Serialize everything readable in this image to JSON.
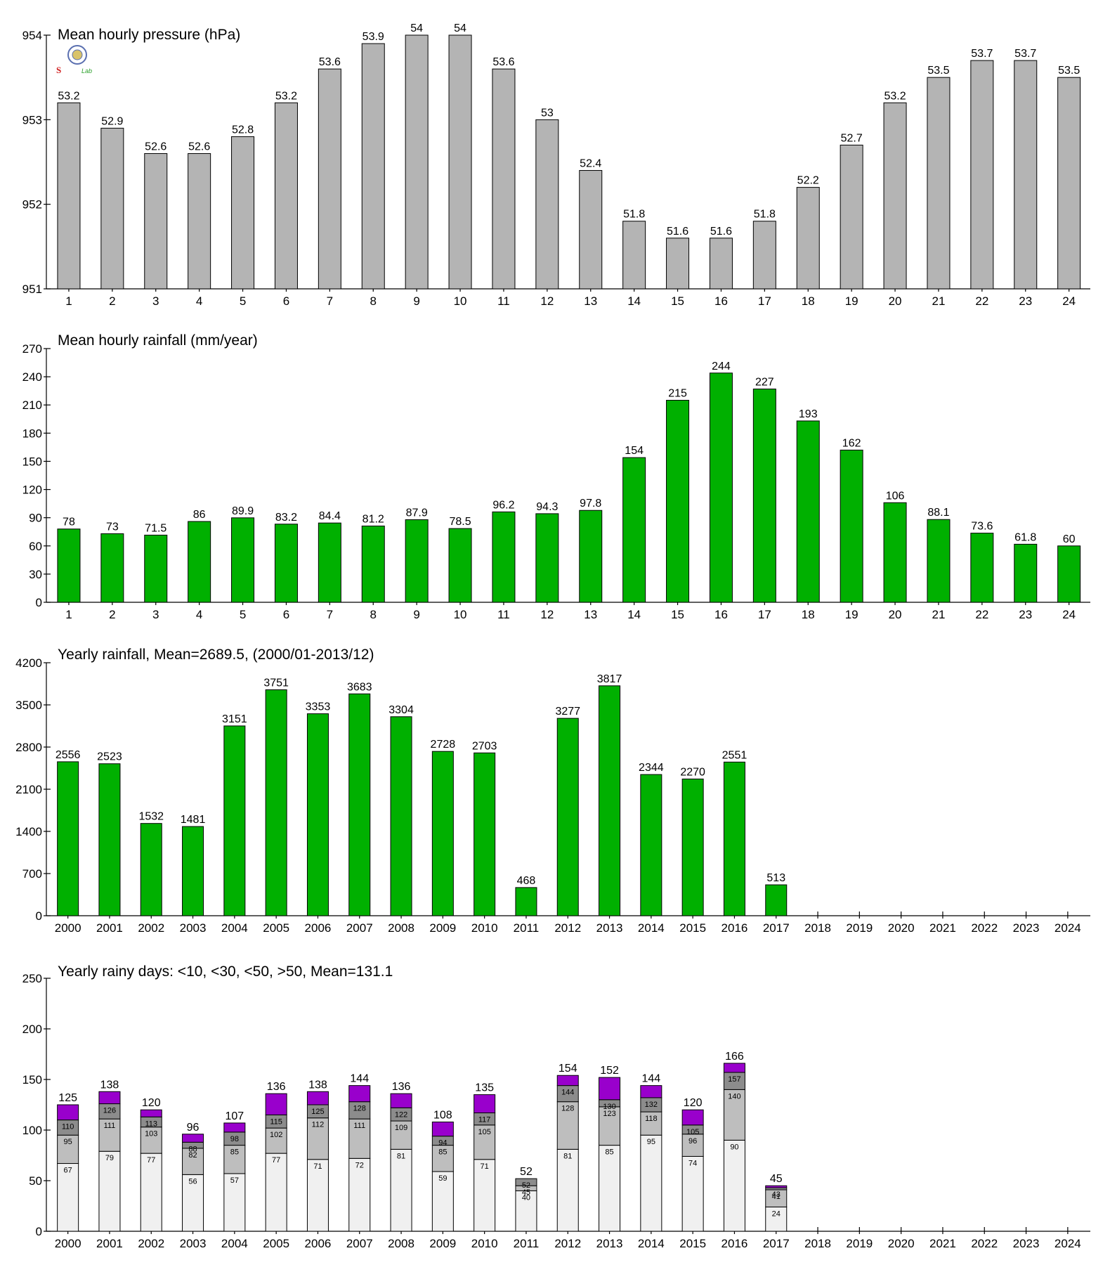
{
  "logo": {
    "text": "Lab",
    "icon": "seal-icon"
  },
  "chart_data": [
    {
      "type": "bar",
      "title": "Mean hourly pressure (hPa)",
      "categories": [
        "1",
        "2",
        "3",
        "4",
        "5",
        "6",
        "7",
        "8",
        "9",
        "10",
        "11",
        "12",
        "13",
        "14",
        "15",
        "16",
        "17",
        "18",
        "19",
        "20",
        "21",
        "22",
        "23",
        "24"
      ],
      "values": [
        953.2,
        952.9,
        952.6,
        952.6,
        952.8,
        953.2,
        953.6,
        953.9,
        954.0,
        954.0,
        953.6,
        953.0,
        952.4,
        951.8,
        951.6,
        951.6,
        951.8,
        952.2,
        952.7,
        953.2,
        953.5,
        953.7,
        953.7,
        953.5
      ],
      "labels": [
        "53.2",
        "52.9",
        "52.6",
        "52.6",
        "52.8",
        "53.2",
        "53.6",
        "53.9",
        "54",
        "54",
        "53.6",
        "53",
        "52.4",
        "51.8",
        "51.6",
        "51.6",
        "51.8",
        "52.2",
        "52.7",
        "53.2",
        "53.5",
        "53.7",
        "53.7",
        "53.5"
      ],
      "ylim": [
        951,
        954
      ],
      "yticks": [
        "951",
        "952",
        "953",
        "954"
      ],
      "color": "#b4b4b4"
    },
    {
      "type": "bar",
      "title": "Mean hourly rainfall (mm/year)",
      "categories": [
        "1",
        "2",
        "3",
        "4",
        "5",
        "6",
        "7",
        "8",
        "9",
        "10",
        "11",
        "12",
        "13",
        "14",
        "15",
        "16",
        "17",
        "18",
        "19",
        "20",
        "21",
        "22",
        "23",
        "24"
      ],
      "values": [
        78,
        73,
        71.5,
        86,
        89.9,
        83.2,
        84.4,
        81.2,
        87.9,
        78.5,
        96.2,
        94.3,
        97.8,
        154,
        215,
        244,
        227,
        193,
        162,
        106,
        88.1,
        73.6,
        61.8,
        60
      ],
      "labels": [
        "78",
        "73",
        "71.5",
        "86",
        "89.9",
        "83.2",
        "84.4",
        "81.2",
        "87.9",
        "78.5",
        "96.2",
        "94.3",
        "97.8",
        "154",
        "215",
        "244",
        "227",
        "193",
        "162",
        "106",
        "88.1",
        "73.6",
        "61.8",
        "60"
      ],
      "ylim": [
        0,
        270
      ],
      "yticks": [
        "0",
        "30",
        "60",
        "90",
        "120",
        "150",
        "180",
        "210",
        "240",
        "270"
      ],
      "color": "#00b000"
    },
    {
      "type": "bar",
      "title": "Yearly rainfall, Mean=2689.5, (2000/01-2013/12)",
      "categories": [
        "2000",
        "2001",
        "2002",
        "2003",
        "2004",
        "2005",
        "2006",
        "2007",
        "2008",
        "2009",
        "2010",
        "2011",
        "2012",
        "2013",
        "2014",
        "2015",
        "2016",
        "2017",
        "2018",
        "2019",
        "2020",
        "2021",
        "2022",
        "2023",
        "2024"
      ],
      "values": [
        2556,
        2523,
        1532,
        1481,
        3151,
        3751,
        3353,
        3683,
        3304,
        2728,
        2703,
        468,
        3277,
        3817,
        2344,
        2270,
        2551,
        513,
        null,
        null,
        null,
        null,
        null,
        null,
        null
      ],
      "labels": [
        "2556",
        "2523",
        "1532",
        "1481",
        "3151",
        "3751",
        "3353",
        "3683",
        "3304",
        "2728",
        "2703",
        "468",
        "3277",
        "3817",
        "2344",
        "2270",
        "2551",
        "513",
        "",
        "",
        "",
        "",
        "",
        "",
        ""
      ],
      "ylim": [
        0,
        4200
      ],
      "yticks": [
        "0",
        "700",
        "1400",
        "2100",
        "2800",
        "3500",
        "4200"
      ],
      "color": "#00b000"
    },
    {
      "type": "bar",
      "stacked": true,
      "title": "Yearly rainy days: <10, <30, <50, >50, Mean=131.1",
      "categories": [
        "2000",
        "2001",
        "2002",
        "2003",
        "2004",
        "2005",
        "2006",
        "2007",
        "2008",
        "2009",
        "2010",
        "2011",
        "2012",
        "2013",
        "2014",
        "2015",
        "2016",
        "2017",
        "2018",
        "2019",
        "2020",
        "2021",
        "2022",
        "2023",
        "2024"
      ],
      "cumulative": [
        [
          67,
          95,
          110,
          125
        ],
        [
          79,
          111,
          126,
          138
        ],
        [
          77,
          103,
          113,
          120
        ],
        [
          56,
          82,
          88,
          96
        ],
        [
          57,
          85,
          98,
          107
        ],
        [
          77,
          102,
          115,
          136
        ],
        [
          71,
          112,
          125,
          138
        ],
        [
          72,
          111,
          128,
          144
        ],
        [
          81,
          109,
          122,
          136
        ],
        [
          59,
          85,
          94,
          108
        ],
        [
          71,
          105,
          117,
          135
        ],
        [
          40,
          45,
          52,
          52
        ],
        [
          81,
          128,
          144,
          154
        ],
        [
          85,
          123,
          130,
          152
        ],
        [
          95,
          118,
          132,
          144
        ],
        [
          74,
          96,
          105,
          120
        ],
        [
          90,
          140,
          157,
          166
        ],
        [
          24,
          41,
          43,
          45
        ],
        null,
        null,
        null,
        null,
        null,
        null,
        null
      ],
      "ylim": [
        0,
        250
      ],
      "yticks": [
        "0",
        "50",
        "100",
        "150",
        "200",
        "250"
      ],
      "colors": [
        "#f0f0f0",
        "#bebebe",
        "#8c8c8c",
        "#9900cc"
      ]
    }
  ]
}
